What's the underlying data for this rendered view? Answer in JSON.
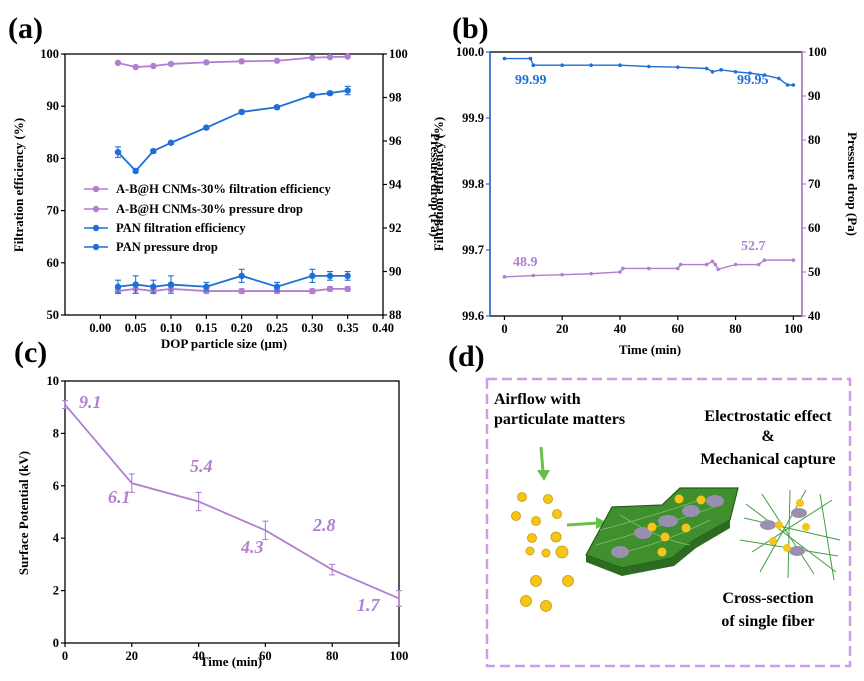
{
  "colors": {
    "purple": "#b07fd0",
    "blue": "#1f6fd8",
    "dashed_border": "#cf9ce6",
    "fiber_green": "#3f8f2f",
    "particle": "#f5c518",
    "pm_grey": "#9a8fb0",
    "arrow_green": "#6abf4b"
  },
  "panels": {
    "a": {
      "label": "(a)"
    },
    "b": {
      "label": "(b)"
    },
    "c": {
      "label": "(c)"
    },
    "d": {
      "label": "(d)"
    }
  },
  "chart_data": [
    {
      "panel": "a",
      "type": "line",
      "xlabel": "DOP particle size (μm)",
      "ylabel": "Filtration efficiency (%)",
      "y2label": "Pressure drop (Pa)",
      "xlim": [
        -0.05,
        0.4
      ],
      "ylim": [
        50,
        100
      ],
      "y2lim": [
        88,
        100
      ],
      "xticks": [
        "0.00",
        "0.05",
        "0.10",
        "0.15",
        "0.20",
        "0.25",
        "0.30",
        "0.35",
        "0.40"
      ],
      "xtick_values": [
        0.0,
        0.05,
        0.1,
        0.15,
        0.2,
        0.25,
        0.3,
        0.35,
        0.4
      ],
      "yticks": [
        "50",
        "60",
        "70",
        "80",
        "90",
        "100"
      ],
      "ytick_values": [
        50,
        60,
        70,
        80,
        90,
        100
      ],
      "y2ticks": [
        "88",
        "90",
        "92",
        "94",
        "96",
        "98",
        "100"
      ],
      "y2tick_values": [
        88,
        90,
        92,
        94,
        96,
        98,
        100
      ],
      "x": [
        0.025,
        0.05,
        0.075,
        0.1,
        0.15,
        0.2,
        0.25,
        0.3,
        0.325,
        0.35
      ],
      "series": [
        {
          "name": "A-B@H CNMs-30% filtration efficiency",
          "axis": "left",
          "color": "#b07fd0",
          "values": [
            98.3,
            97.5,
            97.7,
            98.1,
            98.4,
            98.6,
            98.7,
            99.3,
            99.4,
            99.5
          ]
        },
        {
          "name": "A-B@H CNMs-30% pressure drop",
          "axis": "right",
          "color": "#b07fd0",
          "values": [
            89.1,
            89.2,
            89.1,
            89.2,
            89.1,
            89.1,
            89.1,
            89.1,
            89.2,
            89.2
          ],
          "errors": [
            0.1,
            0.2,
            0.1,
            0.1,
            0.1,
            0.1,
            0.1,
            0.1,
            0.1,
            0.1
          ]
        },
        {
          "name": "PAN filtration efficiency",
          "axis": "left",
          "color": "#1f6fd8",
          "values": [
            81.2,
            77.6,
            81.4,
            83.0,
            85.9,
            88.9,
            89.8,
            92.1,
            92.5,
            93.0
          ],
          "errors": [
            1.0,
            0.3,
            0.3,
            0.3,
            0.3,
            0.3,
            0.3,
            0.3,
            0.3,
            0.8
          ]
        },
        {
          "name": "PAN pressure drop",
          "axis": "right",
          "color": "#1f6fd8",
          "values": [
            89.3,
            89.4,
            89.3,
            89.4,
            89.3,
            89.8,
            89.3,
            89.8,
            89.8,
            89.8
          ],
          "errors": [
            0.3,
            0.4,
            0.3,
            0.4,
            0.2,
            0.3,
            0.2,
            0.3,
            0.2,
            0.2
          ]
        }
      ]
    },
    {
      "panel": "b",
      "type": "line",
      "xlabel": "Time (min)",
      "ylabel": "Filtration efficiency (%)",
      "y2label": "Pressure drop (Pa)",
      "xlim": [
        -5,
        103
      ],
      "ylim": [
        99.6,
        100.0
      ],
      "y2lim": [
        40,
        100
      ],
      "xticks": [
        "0",
        "20",
        "40",
        "60",
        "80",
        "100"
      ],
      "xtick_values": [
        0,
        20,
        40,
        60,
        80,
        100
      ],
      "yticks": [
        "99.6",
        "99.7",
        "99.8",
        "99.9",
        "100.0"
      ],
      "ytick_values": [
        99.6,
        99.7,
        99.8,
        99.9,
        100.0
      ],
      "y2ticks": [
        "40",
        "50",
        "60",
        "70",
        "80",
        "90",
        "100"
      ],
      "y2tick_values": [
        40,
        50,
        60,
        70,
        80,
        90,
        100
      ],
      "series": [
        {
          "name": "Filtration efficiency",
          "axis": "left",
          "color": "#1f6fd8",
          "x": [
            0,
            9,
            10,
            20,
            30,
            40,
            50,
            60,
            70,
            72,
            75,
            80,
            85,
            90,
            95,
            98,
            100
          ],
          "values": [
            99.99,
            99.99,
            99.98,
            99.98,
            99.98,
            99.98,
            99.978,
            99.977,
            99.975,
            99.97,
            99.973,
            99.97,
            99.968,
            99.965,
            99.96,
            99.95,
            99.95
          ]
        },
        {
          "name": "Pressure drop",
          "axis": "right",
          "color": "#b07fd0",
          "x": [
            0,
            10,
            20,
            30,
            40,
            41,
            50,
            60,
            61,
            70,
            72,
            73,
            74,
            80,
            88,
            90,
            100
          ],
          "values": [
            48.9,
            49.2,
            49.4,
            49.6,
            50.0,
            50.8,
            50.8,
            50.8,
            51.7,
            51.7,
            52.4,
            51.7,
            50.6,
            51.7,
            51.7,
            52.7,
            52.7
          ]
        }
      ],
      "annotations": {
        "eff_start": "99.99",
        "eff_end": "99.95",
        "dp_start": "48.9",
        "dp_end": "52.7"
      }
    },
    {
      "panel": "c",
      "type": "line",
      "xlabel": "Time (min)",
      "ylabel": "Surface Potential (kV)",
      "xlim": [
        0,
        100
      ],
      "ylim": [
        0,
        10
      ],
      "xticks": [
        "0",
        "20",
        "40",
        "60",
        "80",
        "100"
      ],
      "xtick_values": [
        0,
        20,
        40,
        60,
        80,
        100
      ],
      "yticks": [
        "0",
        "2",
        "4",
        "6",
        "8",
        "10"
      ],
      "ytick_values": [
        0,
        2,
        4,
        6,
        8,
        10
      ],
      "series": [
        {
          "name": "Surface potential",
          "color": "#b07fd0",
          "x": [
            0,
            20,
            40,
            60,
            80,
            100
          ],
          "values": [
            9.1,
            6.1,
            5.4,
            4.3,
            2.8,
            1.7
          ],
          "errors": [
            0.15,
            0.35,
            0.35,
            0.35,
            0.2,
            0.3
          ]
        }
      ],
      "data_labels": [
        "9.1",
        "6.1",
        "5.4",
        "4.3",
        "2.8",
        "1.7"
      ]
    }
  ],
  "schematic": {
    "airflow_line1": "Airflow with",
    "airflow_line2": "particulate matters",
    "mech_line1": "Electrostatic effect",
    "mech_line2": "&",
    "mech_line3": "Mechanical capture",
    "cross_line1": "Cross-section",
    "cross_line2": "of single fiber"
  }
}
